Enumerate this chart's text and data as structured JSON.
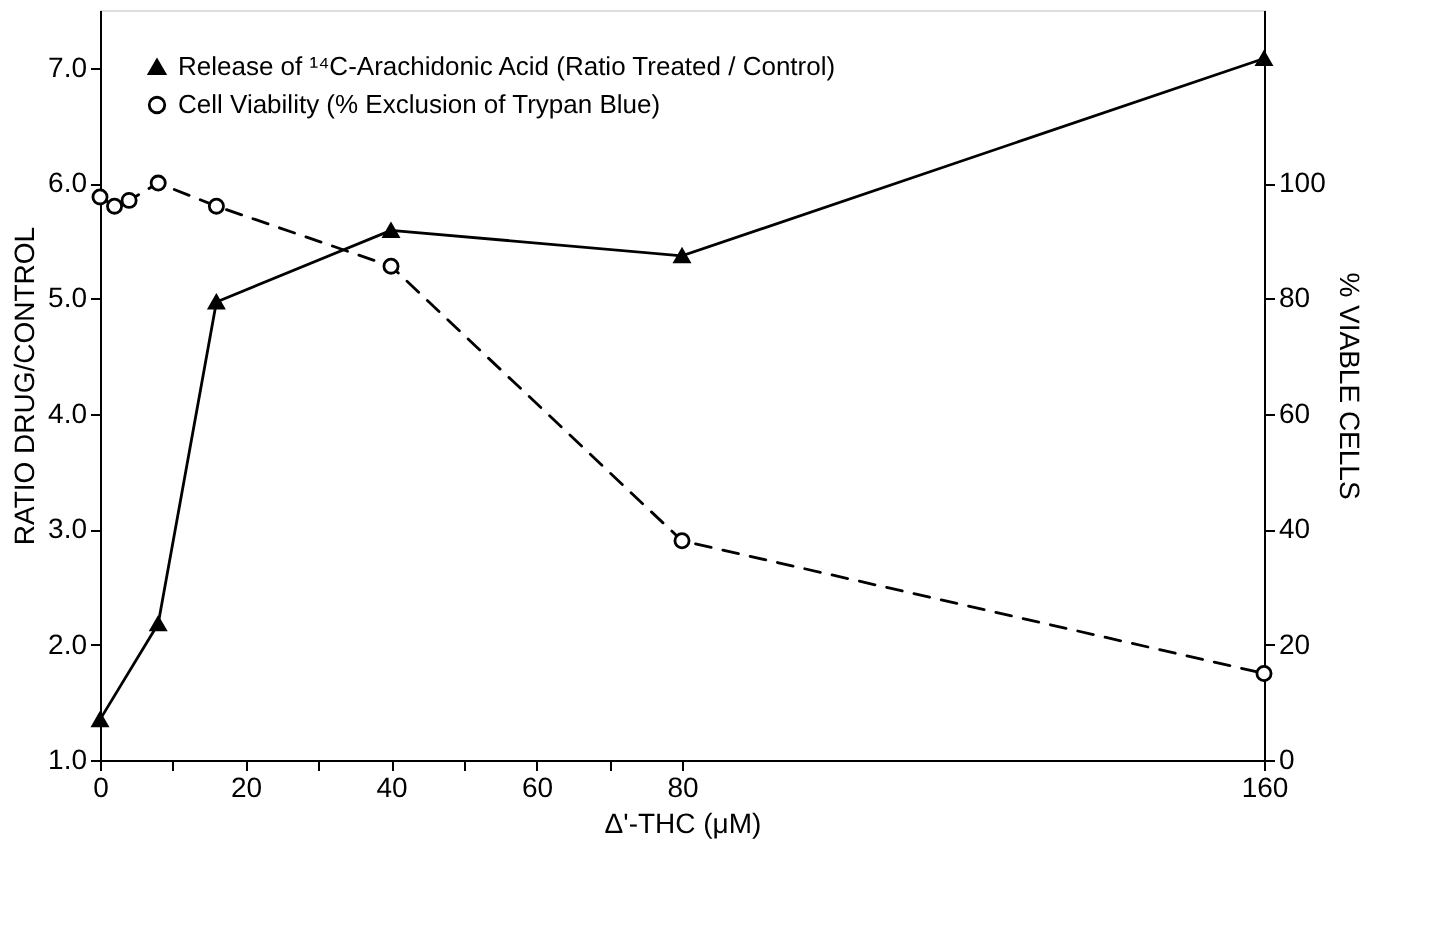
{
  "chart_data": {
    "type": "line",
    "xlabel": "Δ'-THC (μM)",
    "ylabel": "RATIO DRUG/CONTROL",
    "y2label": "% VIABLE CELLS",
    "xlim": [
      0,
      160
    ],
    "xticks": [
      0,
      {
        "value": 10,
        "label": null
      },
      20,
      {
        "value": 30,
        "label": null
      },
      40,
      {
        "value": 50,
        "label": null
      },
      60,
      {
        "value": 70,
        "label": null
      },
      80,
      160
    ],
    "ylim": [
      1,
      7.5
    ],
    "yticks": [
      {
        "value": 1,
        "label": "1.0"
      },
      {
        "value": 2,
        "label": "2.0"
      },
      {
        "value": 3,
        "label": "3.0"
      },
      {
        "value": 4,
        "label": "4.0"
      },
      {
        "value": 5,
        "label": "5.0"
      },
      {
        "value": 6,
        "label": "6.0"
      },
      {
        "value": 7,
        "label": "7.0"
      }
    ],
    "y2lim": [
      0,
      130
    ],
    "y2ticks": [
      0,
      20,
      40,
      60,
      80,
      100
    ],
    "legend": "top left",
    "grid": false,
    "series": [
      {
        "name": "Release of ¹⁴C-Arachidonic Acid (Ratio Treated / Control)",
        "color": "#000000",
        "marker": "triangle",
        "line_style": "solid",
        "x": [
          0,
          8,
          16,
          40,
          80,
          160
        ],
        "values": [
          1.35,
          2.18,
          4.97,
          5.59,
          5.37,
          7.08
        ]
      },
      {
        "name": "Cell Viability (% Exclusion of Trypan Blue)",
        "color": "#000000",
        "marker": "circle",
        "line_style": "dashed",
        "axis": "y2",
        "x": [
          0,
          2,
          4,
          8,
          16,
          40,
          80,
          160
        ],
        "values": [
          97.6,
          96,
          97,
          100,
          96,
          85.6,
          38,
          15
        ]
      }
    ]
  }
}
